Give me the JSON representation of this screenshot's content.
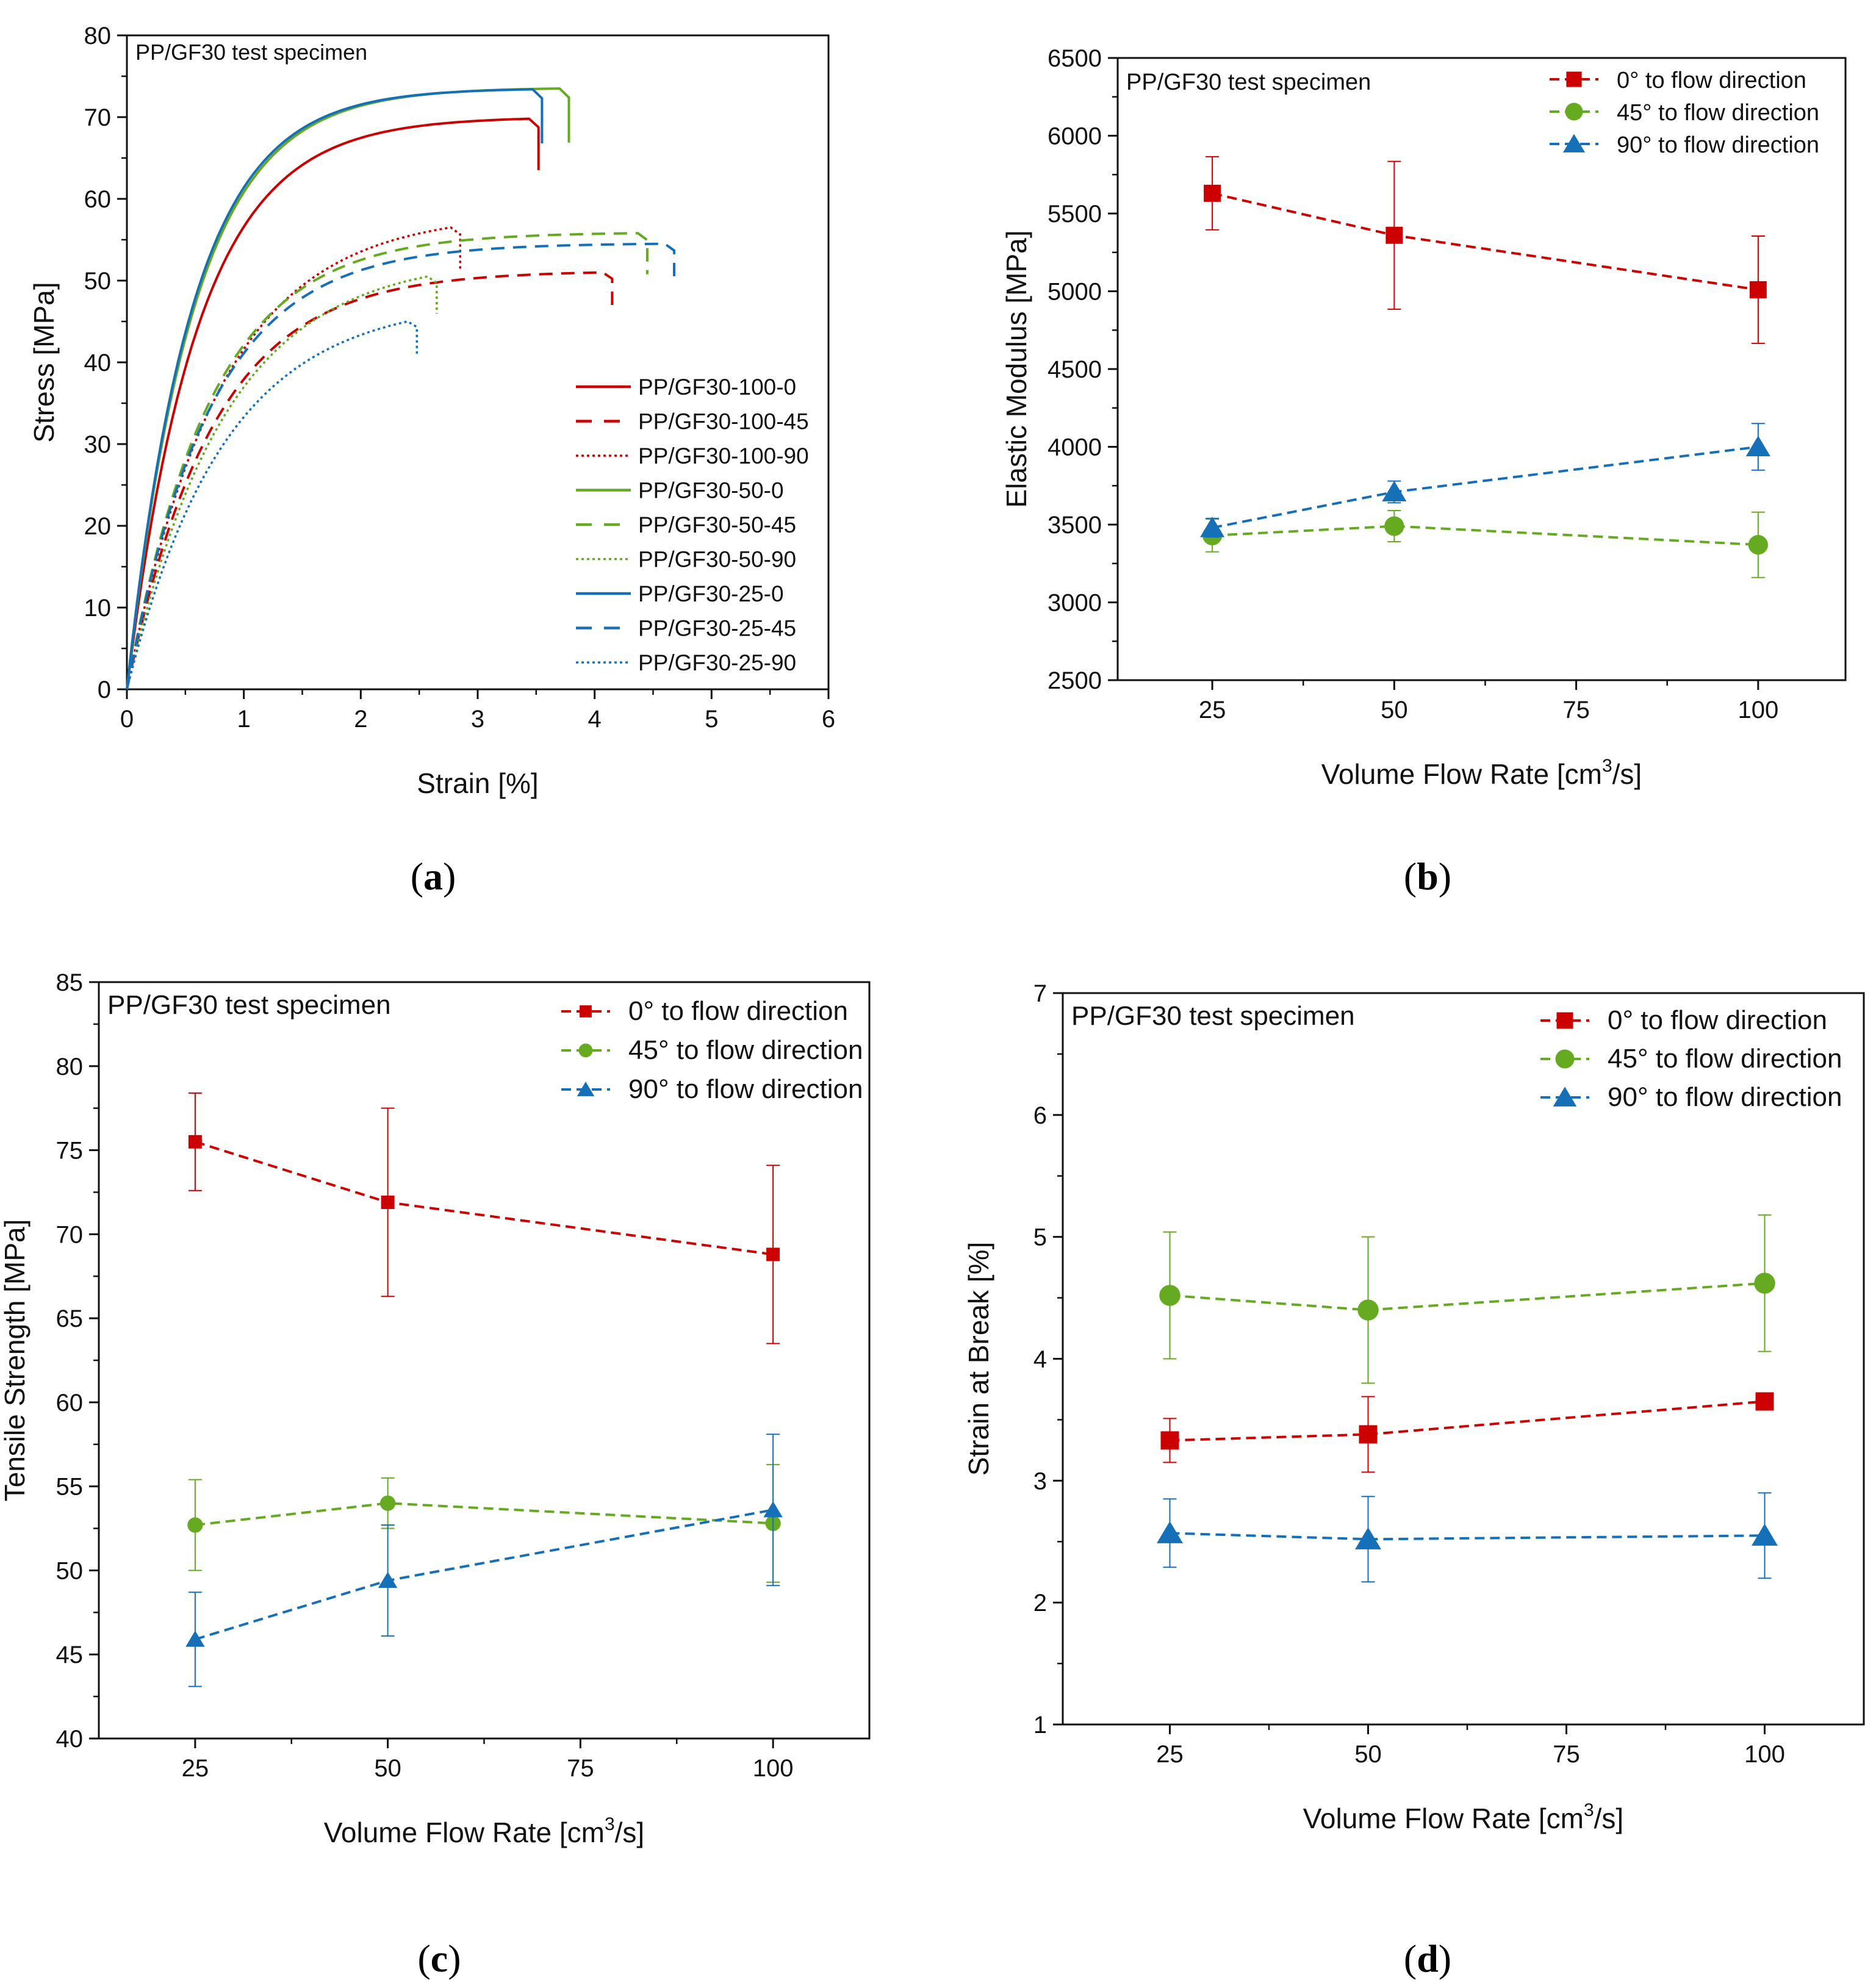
{
  "colors": {
    "red": "#cc0000",
    "green": "#66aa22",
    "blue": "#1570b8"
  },
  "chart_data": [
    {
      "id": "a",
      "type": "line",
      "caption": "a",
      "note": "PP/GF30 test specimen",
      "xlabel": "Strain [%]",
      "ylabel": "Stress [MPa]",
      "xlim": [
        0,
        6
      ],
      "ylim": [
        0,
        80
      ],
      "xticks": [
        0,
        1,
        2,
        3,
        4,
        5,
        6
      ],
      "yticks": [
        0,
        10,
        20,
        30,
        40,
        50,
        60,
        70,
        80
      ],
      "series": [
        {
          "name": "PP/GF30-100-0",
          "color": "red",
          "style": "solid",
          "strength": 69.8,
          "strain": 3.52,
          "k": 1.65
        },
        {
          "name": "PP/GF30-100-45",
          "color": "red",
          "style": "dashed",
          "strength": 51.0,
          "strain": 4.15,
          "k": 1.35
        },
        {
          "name": "PP/GF30-100-90",
          "color": "red",
          "style": "dotted",
          "strength": 56.5,
          "strain": 2.85,
          "k": 1.25
        },
        {
          "name": "PP/GF30-50-0",
          "color": "green",
          "style": "solid",
          "strength": 73.5,
          "strain": 3.78,
          "k": 1.75
        },
        {
          "name": "PP/GF30-50-45",
          "color": "green",
          "style": "dashed",
          "strength": 55.8,
          "strain": 4.45,
          "k": 1.4
        },
        {
          "name": "PP/GF30-50-90",
          "color": "green",
          "style": "dotted",
          "strength": 50.5,
          "strain": 2.65,
          "k": 1.2
        },
        {
          "name": "PP/GF30-25-0",
          "color": "blue",
          "style": "solid",
          "strength": 73.4,
          "strain": 3.55,
          "k": 1.8
        },
        {
          "name": "PP/GF30-25-45",
          "color": "blue",
          "style": "dashed",
          "strength": 54.5,
          "strain": 4.68,
          "k": 1.4
        },
        {
          "name": "PP/GF30-25-90",
          "color": "blue",
          "style": "dotted",
          "strength": 45.0,
          "strain": 2.48,
          "k": 1.2
        }
      ]
    },
    {
      "id": "b",
      "type": "line",
      "caption": "b",
      "note": "PP/GF30 test specimen",
      "xlabel": "Volume Flow Rate [cm",
      "xlabel_sup": "3",
      "xlabel_end": "/s]",
      "ylabel": "Elastic Modulus [MPa]",
      "xlim": [
        12,
        112
      ],
      "ylim": [
        2500,
        6500
      ],
      "xticks": [
        25,
        50,
        75,
        100
      ],
      "yticks": [
        2500,
        3000,
        3500,
        4000,
        4500,
        5000,
        5500,
        6000,
        6500
      ],
      "categories": [
        25,
        50,
        100
      ],
      "series": [
        {
          "name": "0° to flow direction",
          "color": "red",
          "marker": "square",
          "values": [
            5630,
            5360,
            5010
          ],
          "errors": [
            235,
            475,
            345
          ]
        },
        {
          "name": "45° to flow direction",
          "color": "green",
          "marker": "circle",
          "values": [
            3430,
            3490,
            3370
          ],
          "errors": [
            105,
            100,
            210
          ]
        },
        {
          "name": "90° to flow direction",
          "color": "blue",
          "marker": "triangle",
          "values": [
            3480,
            3710,
            4000
          ],
          "errors": [
            60,
            70,
            150
          ]
        }
      ]
    },
    {
      "id": "c",
      "type": "line",
      "caption": "c",
      "note": "PP/GF30 test specimen",
      "xlabel": "Volume Flow Rate [cm",
      "xlabel_sup": "3",
      "xlabel_end": "/s]",
      "ylabel": "Tensile Strength [MPa]",
      "xlim": [
        12.5,
        112.5
      ],
      "ylim": [
        40,
        85
      ],
      "xticks": [
        25,
        50,
        75,
        100
      ],
      "yticks": [
        40,
        45,
        50,
        55,
        60,
        65,
        70,
        75,
        80,
        85
      ],
      "categories": [
        25,
        50,
        100
      ],
      "series": [
        {
          "name": "0° to flow direction",
          "color": "red",
          "marker": "square",
          "values": [
            75.5,
            71.9,
            68.8
          ],
          "errors": [
            2.9,
            5.6,
            5.3
          ]
        },
        {
          "name": "45° to flow direction",
          "color": "green",
          "marker": "circle",
          "values": [
            52.7,
            54.0,
            52.8
          ],
          "errors": [
            2.7,
            1.5,
            3.5
          ]
        },
        {
          "name": "90° to flow direction",
          "color": "blue",
          "marker": "triangle",
          "values": [
            45.9,
            49.4,
            53.6
          ],
          "errors": [
            2.8,
            3.3,
            4.5
          ]
        }
      ]
    },
    {
      "id": "d",
      "type": "line",
      "caption": "d",
      "note": "PP/GF30 test specimen",
      "xlabel": "Volume Flow Rate [cm",
      "xlabel_sup": "3",
      "xlabel_end": "/s]",
      "ylabel": "Strain at Break [%]",
      "xlim": [
        11.5,
        112.5
      ],
      "ylim": [
        1,
        7
      ],
      "xticks": [
        25,
        50,
        75,
        100
      ],
      "yticks": [
        1,
        2,
        3,
        4,
        5,
        6,
        7
      ],
      "categories": [
        25,
        50,
        100
      ],
      "series": [
        {
          "name": "0° to flow direction",
          "color": "red",
          "marker": "square",
          "values": [
            3.33,
            3.38,
            3.65
          ],
          "errors": [
            0.18,
            0.31,
            0.0
          ]
        },
        {
          "name": "45° to flow direction",
          "color": "green",
          "marker": "circle",
          "values": [
            4.52,
            4.4,
            4.62
          ],
          "errors": [
            0.52,
            0.6,
            0.56
          ]
        },
        {
          "name": "90° to flow direction",
          "color": "blue",
          "marker": "triangle",
          "values": [
            2.57,
            2.52,
            2.55
          ],
          "errors": [
            0.28,
            0.35,
            0.35
          ]
        }
      ]
    }
  ]
}
